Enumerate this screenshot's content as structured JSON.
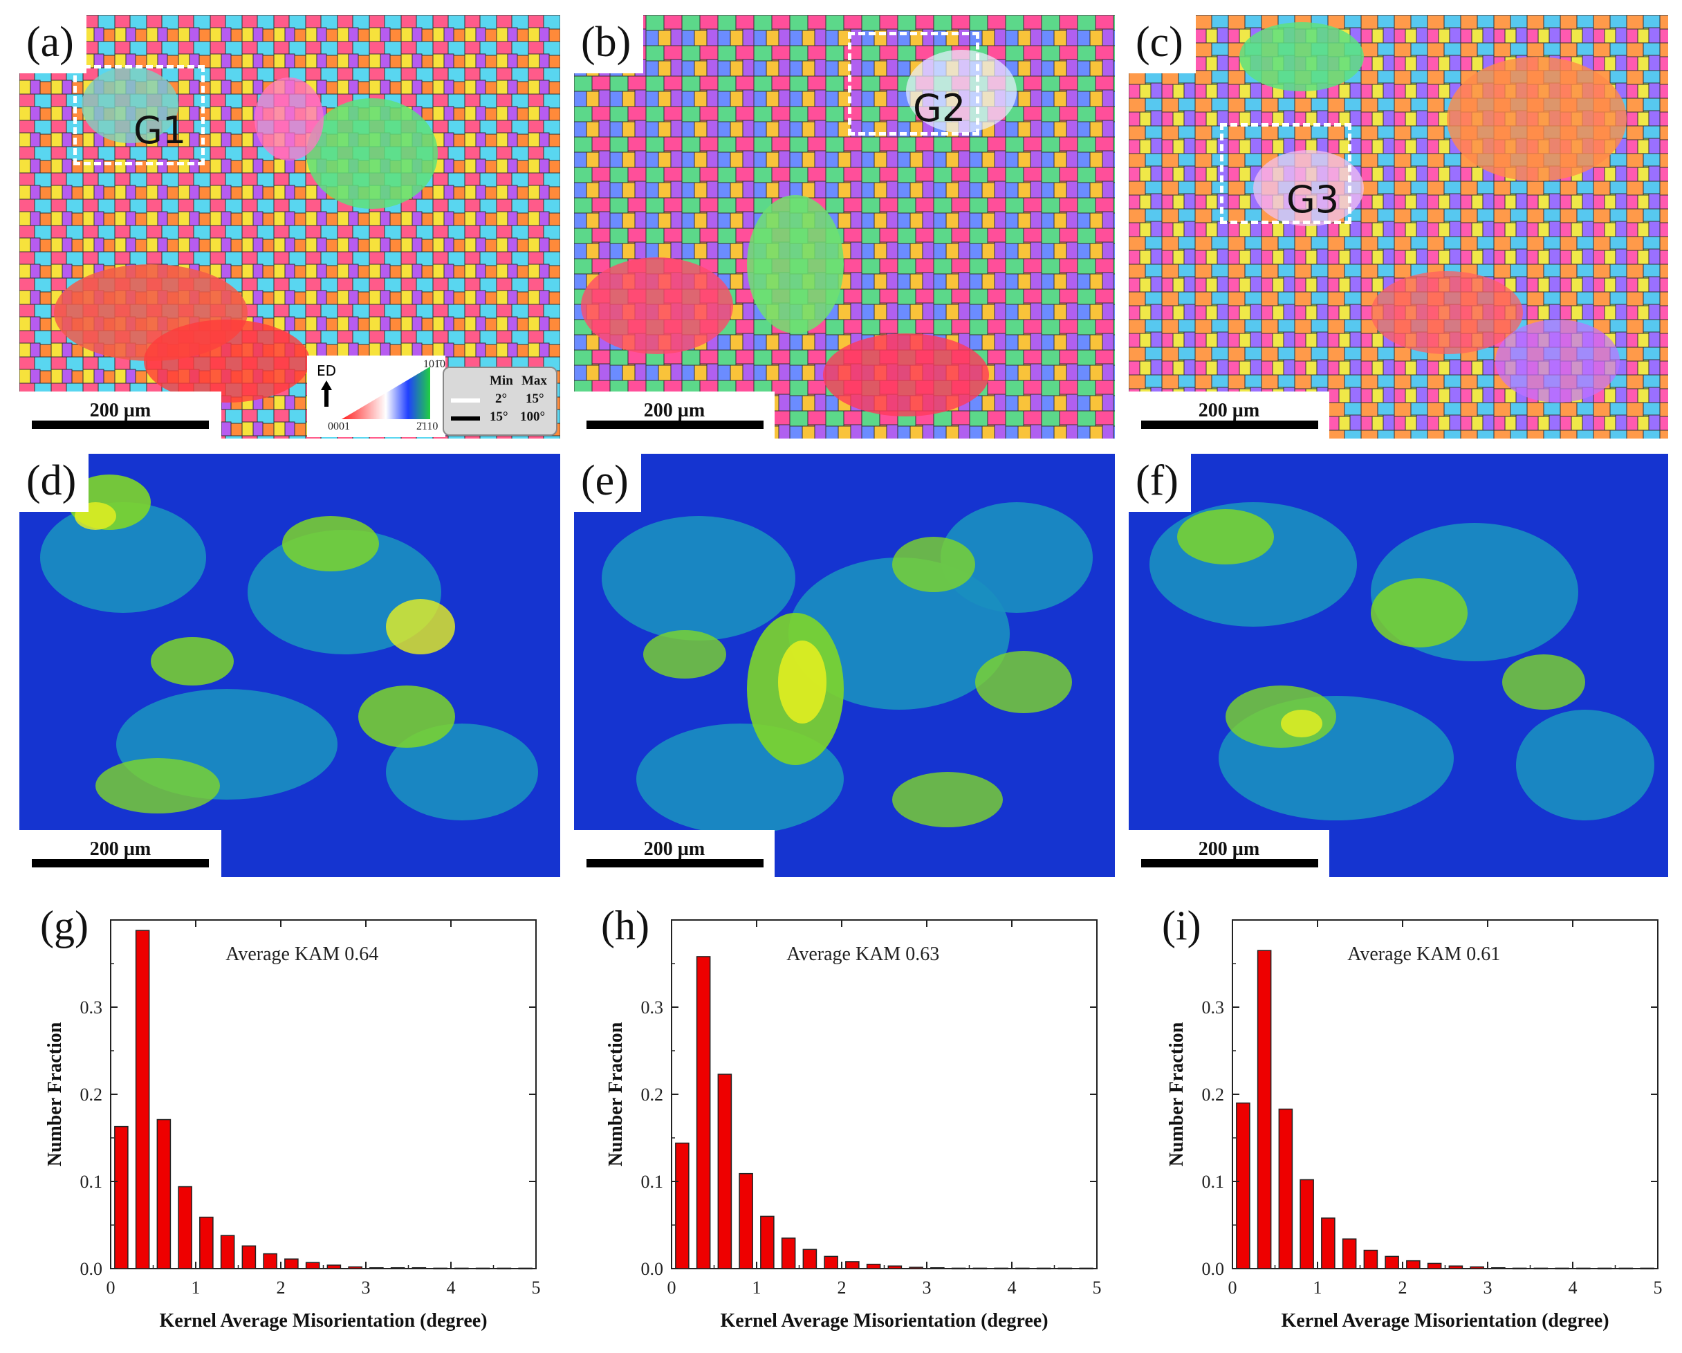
{
  "panels": {
    "a": {
      "label": "(a)",
      "region": "G1",
      "scale": "200 µm"
    },
    "b": {
      "label": "(b)",
      "region": "G2",
      "scale": "200 µm"
    },
    "c": {
      "label": "(c)",
      "region": "G3",
      "scale": "200 µm"
    },
    "d": {
      "label": "(d)",
      "scale": "200 µm"
    },
    "e": {
      "label": "(e)",
      "scale": "200 µm"
    },
    "f": {
      "label": "(f)",
      "scale": "200 µm"
    }
  },
  "legend": {
    "ipf": {
      "direction": "ED",
      "corner_top": "101̄0",
      "corner_left": "0001",
      "corner_right": "2̄110"
    },
    "boundaries": {
      "header_min": "Min",
      "header_max": "Max",
      "row1_min": "2°",
      "row1_max": "15°",
      "row2_min": "15°",
      "row2_max": "100°"
    }
  },
  "colors": {
    "bar": "#ee0000",
    "kam_low": "#1030d8",
    "kam_mid": "#1a8fc0",
    "kam_high": "#7ed62a",
    "kam_peak": "#e8f020"
  },
  "chart_data": [
    {
      "type": "bar",
      "panel_label": "(g)",
      "annotation": "Average KAM 0.64",
      "xlabel": "Kernel Average Misorientation (degree)",
      "ylabel": "Number Fraction",
      "xlim": [
        0,
        5
      ],
      "ylim": [
        0,
        0.4
      ],
      "xticks": [
        "0",
        "1",
        "2",
        "3",
        "4",
        "5"
      ],
      "yticks": [
        "0.0",
        "0.1",
        "0.2",
        "0.3"
      ],
      "x": [
        0.125,
        0.375,
        0.625,
        0.875,
        1.125,
        1.375,
        1.625,
        1.875,
        2.125,
        2.375,
        2.625,
        2.875,
        3.125,
        3.375,
        3.625,
        3.875,
        4.125,
        4.375,
        4.625,
        4.875
      ],
      "values": [
        0.163,
        0.388,
        0.171,
        0.094,
        0.059,
        0.038,
        0.026,
        0.017,
        0.011,
        0.007,
        0.004,
        0.002,
        0.001,
        0.001,
        0.001,
        0.0005,
        0.0005,
        0.0005,
        0.0005,
        0.0005
      ]
    },
    {
      "type": "bar",
      "panel_label": "(h)",
      "annotation": "Average KAM 0.63",
      "xlabel": "Kernel Average Misorientation (degree)",
      "ylabel": "Number Fraction",
      "xlim": [
        0,
        5
      ],
      "ylim": [
        0,
        0.4
      ],
      "xticks": [
        "0",
        "1",
        "2",
        "3",
        "4",
        "5"
      ],
      "yticks": [
        "0.0",
        "0.1",
        "0.2",
        "0.3"
      ],
      "x": [
        0.125,
        0.375,
        0.625,
        0.875,
        1.125,
        1.375,
        1.625,
        1.875,
        2.125,
        2.375,
        2.625,
        2.875,
        3.125,
        3.375,
        3.625,
        3.875,
        4.125,
        4.375,
        4.625,
        4.875
      ],
      "values": [
        0.144,
        0.358,
        0.223,
        0.109,
        0.06,
        0.035,
        0.022,
        0.014,
        0.008,
        0.005,
        0.003,
        0.0015,
        0.001,
        0.0005,
        0.0005,
        0.0005,
        0.0005,
        0.0005,
        0.0005,
        0.0005
      ]
    },
    {
      "type": "bar",
      "panel_label": "(i)",
      "annotation": "Average KAM 0.61",
      "xlabel": "Kernel Average Misorientation (degree)",
      "ylabel": "Number Fraction",
      "xlim": [
        0,
        5
      ],
      "ylim": [
        0,
        0.4
      ],
      "xticks": [
        "0",
        "1",
        "2",
        "3",
        "4",
        "5"
      ],
      "yticks": [
        "0.0",
        "0.1",
        "0.2",
        "0.3"
      ],
      "x": [
        0.125,
        0.375,
        0.625,
        0.875,
        1.125,
        1.375,
        1.625,
        1.875,
        2.125,
        2.375,
        2.625,
        2.875,
        3.125,
        3.375,
        3.625,
        3.875,
        4.125,
        4.375,
        4.625,
        4.875
      ],
      "values": [
        0.19,
        0.365,
        0.183,
        0.102,
        0.058,
        0.034,
        0.021,
        0.014,
        0.009,
        0.006,
        0.003,
        0.002,
        0.001,
        0.0005,
        0.0005,
        0.0005,
        0.0005,
        0.0005,
        0.0005,
        0.0005
      ]
    }
  ]
}
